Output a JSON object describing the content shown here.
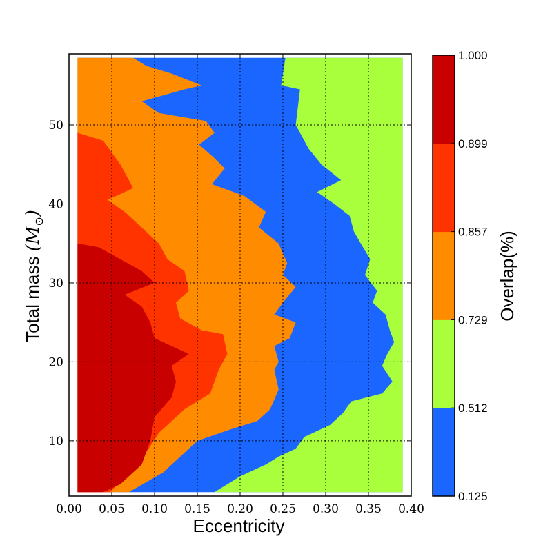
{
  "chart_data": {
    "type": "heatmap",
    "subtype": "filled-contour",
    "title": "",
    "xlabel": "Eccentricity",
    "ylabel_text": "Total mass ",
    "ylabel_math": "(M",
    "ylabel_sun": "⊙",
    "ylabel_close": ")",
    "xlim": [
      0.0,
      0.4
    ],
    "ylim": [
      3,
      59
    ],
    "x_ticks": [
      0.0,
      0.05,
      0.1,
      0.15,
      0.2,
      0.25,
      0.3,
      0.35,
      0.4
    ],
    "x_tick_labels": [
      "0.00",
      "0.05",
      "0.10",
      "0.15",
      "0.20",
      "0.25",
      "0.30",
      "0.35",
      "0.40"
    ],
    "y_ticks": [
      10,
      20,
      30,
      40,
      50
    ],
    "y_tick_labels": [
      "10",
      "20",
      "30",
      "40",
      "50"
    ],
    "grid": true,
    "data_extent": {
      "x": [
        0.01,
        0.39
      ],
      "y": [
        3.5,
        58.5
      ]
    },
    "colorbar": {
      "label": "Overlap(%)",
      "levels": [
        0.125,
        0.512,
        0.729,
        0.857,
        0.899,
        1.0
      ],
      "level_labels": [
        "0.125",
        "0.512",
        "0.729",
        "0.857",
        "0.899",
        "1.000"
      ],
      "colors": [
        "#1a66ff",
        "#aaff3c",
        "#ff8c00",
        "#ff3300",
        "#c80000"
      ]
    },
    "contours": [
      {
        "name": "0.512",
        "points": [
          [
            0.39,
            58.5
          ],
          [
            0.253,
            58.5
          ],
          [
            0.248,
            55
          ],
          [
            0.27,
            54.5
          ],
          [
            0.265,
            50
          ],
          [
            0.28,
            47
          ],
          [
            0.295,
            45
          ],
          [
            0.318,
            43
          ],
          [
            0.29,
            41.5
          ],
          [
            0.31,
            40
          ],
          [
            0.328,
            38.5
          ],
          [
            0.333,
            36.5
          ],
          [
            0.341,
            35
          ],
          [
            0.352,
            33
          ],
          [
            0.346,
            31
          ],
          [
            0.36,
            29
          ],
          [
            0.355,
            27.5
          ],
          [
            0.37,
            26
          ],
          [
            0.375,
            24
          ],
          [
            0.38,
            22.5
          ],
          [
            0.372,
            21
          ],
          [
            0.366,
            19.5
          ],
          [
            0.378,
            17.5
          ],
          [
            0.366,
            16
          ],
          [
            0.33,
            15
          ],
          [
            0.32,
            13.5
          ],
          [
            0.305,
            12
          ],
          [
            0.275,
            10.5
          ],
          [
            0.265,
            9
          ],
          [
            0.245,
            8
          ],
          [
            0.23,
            7
          ],
          [
            0.2,
            5.5
          ],
          [
            0.17,
            3.5
          ],
          [
            0.39,
            3.5
          ]
        ]
      },
      {
        "name": "0.729",
        "points": [
          [
            0.01,
            58.5
          ],
          [
            0.075,
            58.5
          ],
          [
            0.09,
            57.5
          ],
          [
            0.12,
            56.5
          ],
          [
            0.155,
            55
          ],
          [
            0.135,
            54.5
          ],
          [
            0.085,
            53
          ],
          [
            0.105,
            51.5
          ],
          [
            0.16,
            50.5
          ],
          [
            0.17,
            49
          ],
          [
            0.152,
            47.5
          ],
          [
            0.168,
            46
          ],
          [
            0.182,
            44.5
          ],
          [
            0.167,
            42.5
          ],
          [
            0.205,
            41
          ],
          [
            0.23,
            39
          ],
          [
            0.222,
            37
          ],
          [
            0.245,
            35
          ],
          [
            0.255,
            32.5
          ],
          [
            0.25,
            31
          ],
          [
            0.265,
            29.5
          ],
          [
            0.25,
            27.5
          ],
          [
            0.24,
            26
          ],
          [
            0.265,
            25
          ],
          [
            0.258,
            23
          ],
          [
            0.24,
            22
          ],
          [
            0.245,
            20
          ],
          [
            0.24,
            19
          ],
          [
            0.245,
            16.5
          ],
          [
            0.235,
            14
          ],
          [
            0.22,
            12.5
          ],
          [
            0.19,
            11.5
          ],
          [
            0.15,
            10
          ],
          [
            0.11,
            6
          ],
          [
            0.07,
            3.5
          ],
          [
            0.01,
            3.5
          ]
        ]
      },
      {
        "name": "0.857",
        "points": [
          [
            0.01,
            49
          ],
          [
            0.04,
            48
          ],
          [
            0.06,
            45
          ],
          [
            0.075,
            42
          ],
          [
            0.045,
            40.5
          ],
          [
            0.065,
            39
          ],
          [
            0.085,
            37
          ],
          [
            0.105,
            35
          ],
          [
            0.115,
            33
          ],
          [
            0.135,
            31.5
          ],
          [
            0.14,
            29
          ],
          [
            0.125,
            27.5
          ],
          [
            0.13,
            25.5
          ],
          [
            0.155,
            24
          ],
          [
            0.18,
            23.5
          ],
          [
            0.185,
            21
          ],
          [
            0.175,
            19
          ],
          [
            0.165,
            16
          ],
          [
            0.135,
            14
          ],
          [
            0.105,
            11
          ],
          [
            0.09,
            8.5
          ],
          [
            0.07,
            6
          ],
          [
            0.048,
            3.5
          ],
          [
            0.01,
            3.5
          ]
        ]
      },
      {
        "name": "0.899",
        "points": [
          [
            0.01,
            35
          ],
          [
            0.035,
            34.5
          ],
          [
            0.06,
            33
          ],
          [
            0.085,
            31.5
          ],
          [
            0.1,
            30
          ],
          [
            0.065,
            28.5
          ],
          [
            0.085,
            27
          ],
          [
            0.095,
            25
          ],
          [
            0.1,
            23
          ],
          [
            0.12,
            22
          ],
          [
            0.14,
            21
          ],
          [
            0.12,
            19.5
          ],
          [
            0.125,
            17.5
          ],
          [
            0.12,
            15.5
          ],
          [
            0.1,
            13
          ],
          [
            0.095,
            10
          ],
          [
            0.085,
            7
          ],
          [
            0.06,
            4.5
          ],
          [
            0.04,
            3.5
          ],
          [
            0.01,
            3.5
          ]
        ]
      }
    ]
  }
}
